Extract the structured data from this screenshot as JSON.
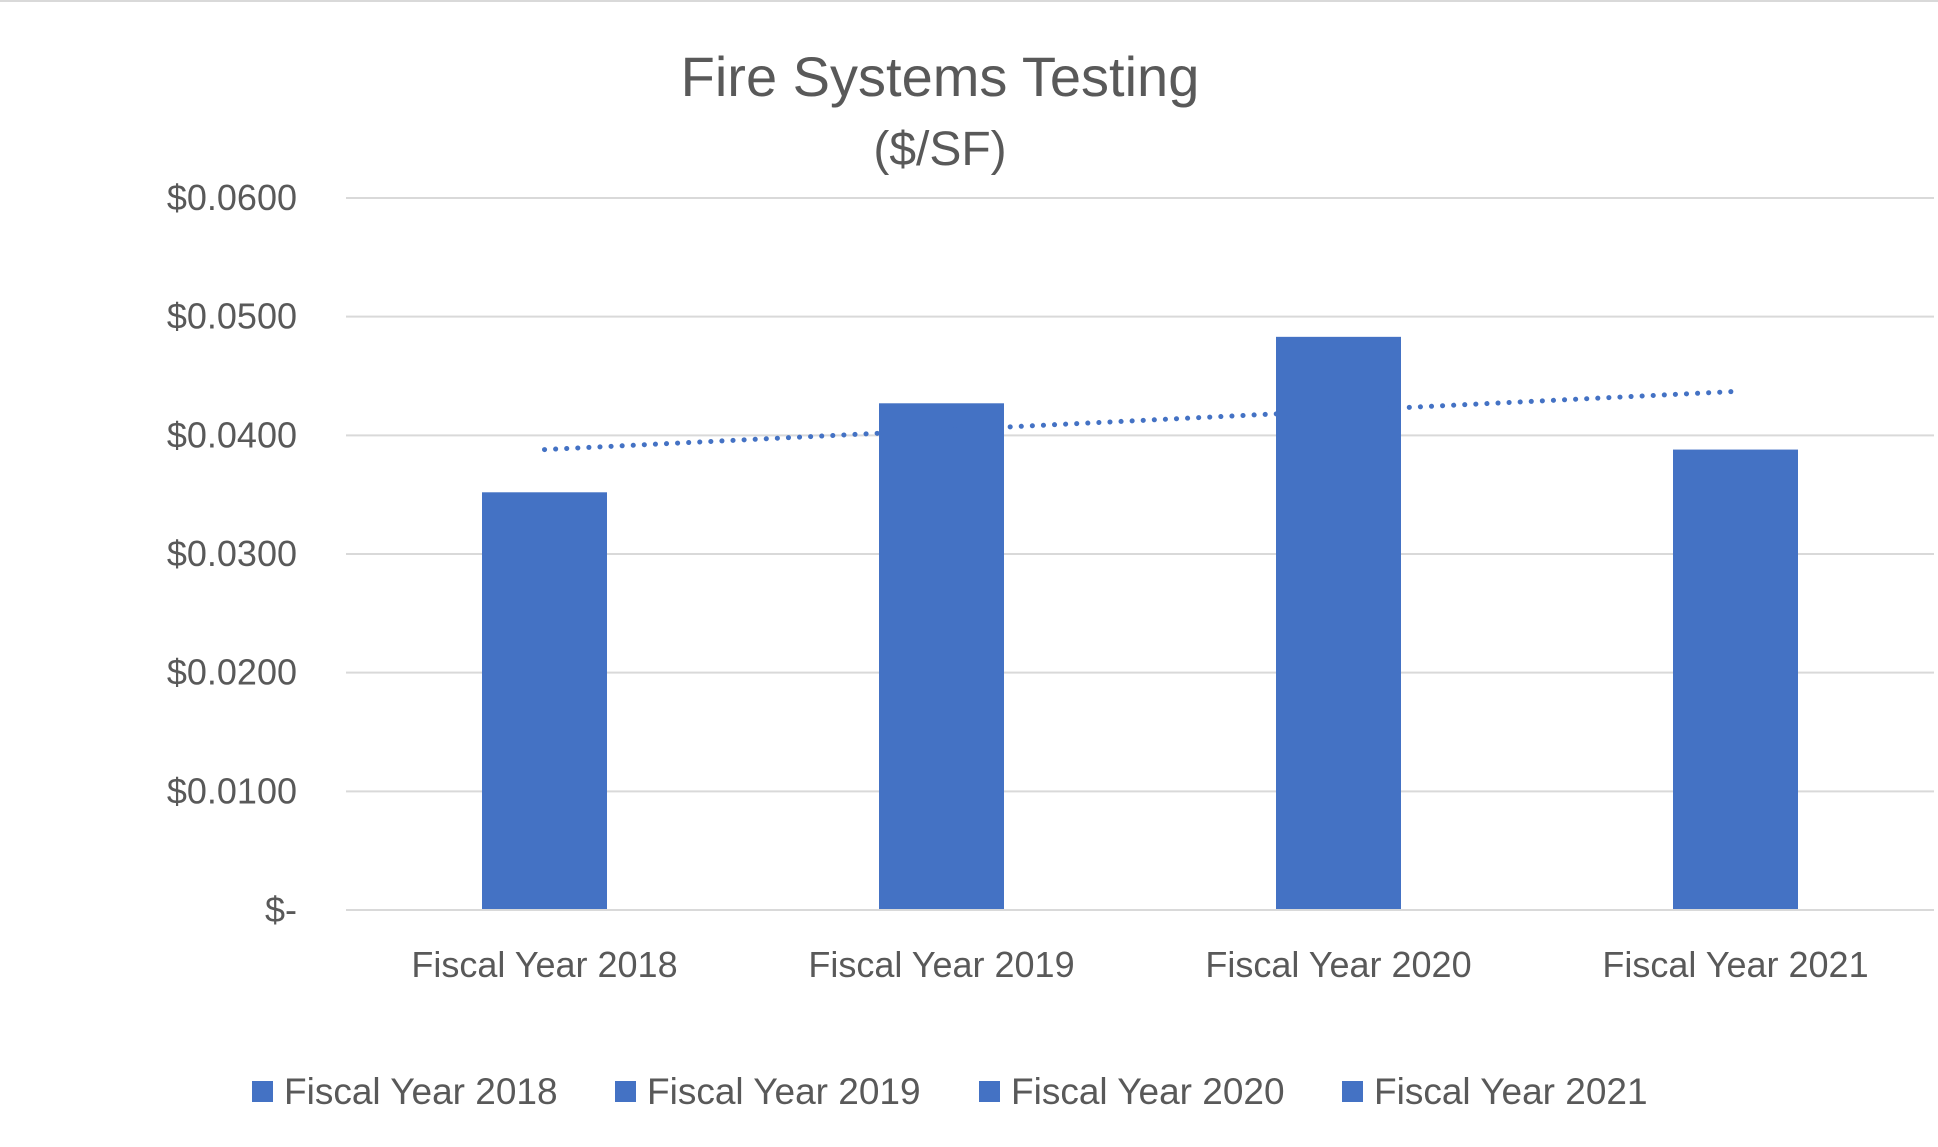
{
  "chart_data": {
    "type": "bar",
    "title": "Fire Systems Testing",
    "subtitle": "($/SF)",
    "xlabel": "",
    "ylabel": "",
    "categories": [
      "Fiscal Year 2018",
      "Fiscal Year 2019",
      "Fiscal Year 2020",
      "Fiscal Year 2021"
    ],
    "values": [
      0.0352,
      0.0427,
      0.0483,
      0.0388
    ],
    "ylim": [
      0,
      0.06
    ],
    "yticks": [
      0,
      0.01,
      0.02,
      0.03,
      0.04,
      0.05,
      0.06
    ],
    "ytick_labels": [
      "$-",
      "$0.0100",
      "$0.0200",
      "$0.0300",
      "$0.0400",
      "$0.0500",
      "$0.0600"
    ],
    "grid": true,
    "legend": {
      "position": "bottom",
      "entries": [
        "Fiscal Year 2018",
        "Fiscal Year 2019",
        "Fiscal Year 2020",
        "Fiscal Year 2021"
      ]
    },
    "trendline": {
      "type": "linear",
      "style": "dotted",
      "start": 0.0388,
      "end": 0.0437
    },
    "colors": {
      "bar": "#4472C4",
      "trendline": "#4472C4",
      "grid": "#D9D9D9",
      "text": "#595959"
    }
  }
}
